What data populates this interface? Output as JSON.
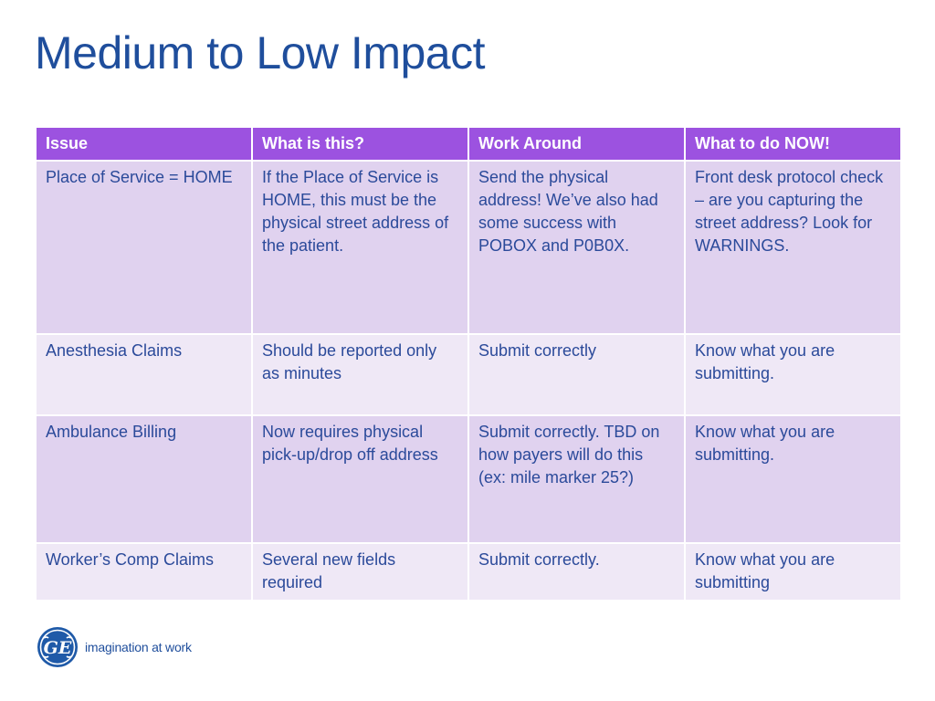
{
  "slide": {
    "title": "Medium to Low Impact"
  },
  "table": {
    "headers": [
      "Issue",
      "What is this?",
      "Work Around",
      "What to do NOW!"
    ],
    "rows": [
      {
        "issue": "Place of Service = HOME",
        "what": "If the Place of Service is HOME, this must be the physical street address of the patient.",
        "workaround": "Send the physical address!  We’ve also had some success with POBOX and P0B0X.",
        "todo": "Front desk protocol check – are you capturing the street address?  Look for WARNINGS."
      },
      {
        "issue": "Anesthesia Claims",
        "what": "Should be reported only as minutes",
        "workaround": "Submit correctly",
        "todo": "Know what you are submitting."
      },
      {
        "issue": "Ambulance Billing",
        "what": "Now requires physical pick-up/drop off address",
        "workaround": "Submit correctly.  TBD on how payers will do this (ex: mile marker 25?)",
        "todo": "Know what you are submitting."
      },
      {
        "issue": "Worker’s Comp Claims",
        "what": "Several new fields required",
        "workaround": "Submit correctly.",
        "todo": "Know what you are submitting"
      }
    ]
  },
  "footer": {
    "logo_text": "GE",
    "tagline": "imagination at work"
  },
  "colors": {
    "title": "#1f4e9c",
    "header_bg": "#9c52e0",
    "row_odd": "#e0d2ef",
    "row_even": "#efe8f6",
    "body_text": "#2b4a9a"
  }
}
